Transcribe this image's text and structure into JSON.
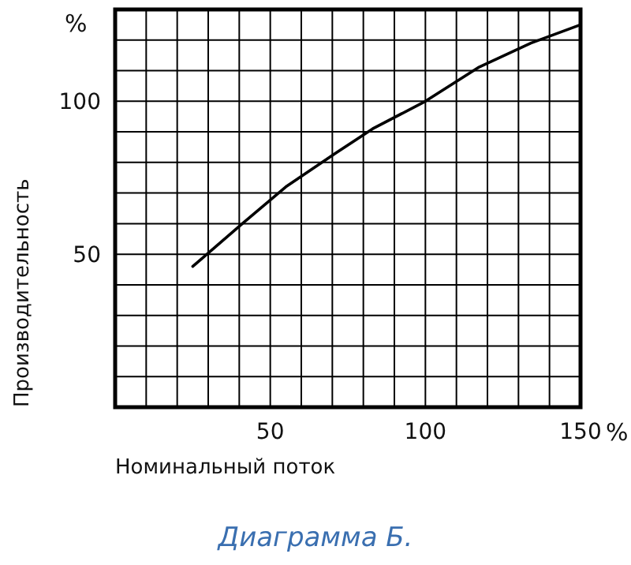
{
  "chart_data": {
    "type": "line",
    "title": "Диаграмма Б.",
    "xlabel": "Номинальный поток",
    "ylabel": "Производительность",
    "annotations": [
      "%",
      "%"
    ],
    "x": [
      25,
      41,
      55,
      71,
      83,
      100,
      117,
      134,
      150
    ],
    "series": [
      {
        "color": "#000000",
        "values": [
          46,
          60,
          72,
          83,
          91,
          100,
          111,
          119,
          125
        ]
      }
    ],
    "xlim": [
      0,
      150
    ],
    "ylim": [
      0,
      130
    ],
    "xticks": [
      {
        "value": 10,
        "label": null
      },
      {
        "value": 20,
        "label": null
      },
      {
        "value": 30,
        "label": null
      },
      {
        "value": 40,
        "label": null
      },
      50,
      {
        "value": 60,
        "label": null
      },
      {
        "value": 70,
        "label": null
      },
      {
        "value": 80,
        "label": null
      },
      {
        "value": 90,
        "label": null
      },
      100,
      {
        "value": 110,
        "label": null
      },
      {
        "value": 120,
        "label": null
      },
      {
        "value": 130,
        "label": null
      },
      {
        "value": 140,
        "label": null
      },
      150
    ],
    "yticks": [
      {
        "value": 10,
        "label": null
      },
      {
        "value": 20,
        "label": null
      },
      {
        "value": 30,
        "label": null
      },
      {
        "value": 40,
        "label": null
      },
      50,
      {
        "value": 60,
        "label": null
      },
      {
        "value": 70,
        "label": null
      },
      {
        "value": 80,
        "label": null
      },
      {
        "value": 90,
        "label": null
      },
      100,
      {
        "value": 110,
        "label": null
      },
      {
        "value": 120,
        "label": null
      },
      {
        "value": 130,
        "label": null
      }
    ],
    "grid": true,
    "line_style": "solid"
  }
}
